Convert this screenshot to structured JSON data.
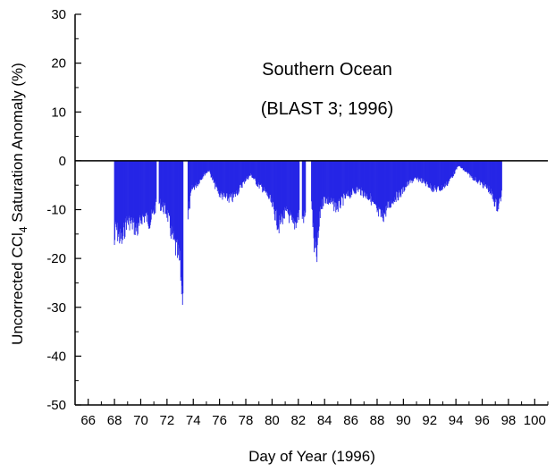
{
  "chart_data": {
    "type": "bar",
    "title": "Southern Ocean",
    "subtitle": "(BLAST 3; 1996)",
    "xlabel": "Day of Year (1996)",
    "ylabel_main": "Uncorrected CCl",
    "ylabel_sub": "4",
    "ylabel_rest": " Saturation Anomaly (%)",
    "xlim": [
      65,
      101
    ],
    "ylim": [
      -50,
      30
    ],
    "xticks": [
      66,
      68,
      70,
      72,
      74,
      76,
      78,
      80,
      82,
      84,
      86,
      88,
      90,
      92,
      94,
      96,
      98,
      100
    ],
    "yticks": [
      -50,
      -40,
      -30,
      -20,
      -10,
      0,
      10,
      20,
      30
    ],
    "grid": false,
    "bar_color": "#2626e6",
    "zero_line": 0,
    "segments": [
      {
        "start": 68.0,
        "end": 71.2,
        "profile": [
          [
            68.0,
            -18
          ],
          [
            68.1,
            -14
          ],
          [
            68.3,
            -16
          ],
          [
            68.6,
            -17
          ],
          [
            68.9,
            -13
          ],
          [
            69.2,
            -13
          ],
          [
            69.5,
            -14
          ],
          [
            69.8,
            -15
          ],
          [
            70.1,
            -12
          ],
          [
            70.4,
            -12
          ],
          [
            70.7,
            -13
          ],
          [
            71.0,
            -11
          ],
          [
            71.2,
            -9
          ]
        ]
      },
      {
        "start": 71.4,
        "end": 73.25,
        "profile": [
          [
            71.4,
            -9
          ],
          [
            71.7,
            -10
          ],
          [
            72.0,
            -11
          ],
          [
            72.3,
            -15
          ],
          [
            72.6,
            -18
          ],
          [
            72.8,
            -20
          ],
          [
            73.0,
            -22
          ],
          [
            73.15,
            -28
          ],
          [
            73.25,
            -26
          ]
        ]
      },
      {
        "start": 73.6,
        "end": 82.1,
        "profile": [
          [
            73.6,
            -12
          ],
          [
            73.9,
            -6
          ],
          [
            74.3,
            -5
          ],
          [
            74.8,
            -3
          ],
          [
            75.2,
            -2
          ],
          [
            75.6,
            -5
          ],
          [
            76.0,
            -7
          ],
          [
            76.5,
            -8
          ],
          [
            77.0,
            -8
          ],
          [
            77.5,
            -6
          ],
          [
            78.0,
            -4
          ],
          [
            78.4,
            -3
          ],
          [
            78.9,
            -5
          ],
          [
            79.3,
            -6
          ],
          [
            79.8,
            -8
          ],
          [
            80.2,
            -11
          ],
          [
            80.5,
            -14
          ],
          [
            80.8,
            -12
          ],
          [
            81.2,
            -11
          ],
          [
            81.6,
            -14
          ],
          [
            82.0,
            -12
          ],
          [
            82.1,
            -11
          ]
        ]
      },
      {
        "start": 82.3,
        "end": 82.55,
        "profile": [
          [
            82.3,
            -12
          ],
          [
            82.55,
            -12
          ]
        ]
      },
      {
        "start": 83.0,
        "end": 97.5,
        "profile": [
          [
            83.0,
            -8
          ],
          [
            83.2,
            -18
          ],
          [
            83.4,
            -21
          ],
          [
            83.7,
            -10
          ],
          [
            84.0,
            -8
          ],
          [
            84.5,
            -9
          ],
          [
            85.0,
            -10
          ],
          [
            85.5,
            -8
          ],
          [
            86.0,
            -7
          ],
          [
            86.5,
            -6
          ],
          [
            87.0,
            -7
          ],
          [
            87.5,
            -8
          ],
          [
            88.0,
            -11
          ],
          [
            88.4,
            -12
          ],
          [
            88.8,
            -10
          ],
          [
            89.3,
            -8
          ],
          [
            89.8,
            -7
          ],
          [
            90.3,
            -5
          ],
          [
            90.8,
            -4
          ],
          [
            91.3,
            -4
          ],
          [
            91.8,
            -5
          ],
          [
            92.3,
            -6
          ],
          [
            92.8,
            -6
          ],
          [
            93.3,
            -5
          ],
          [
            93.8,
            -3
          ],
          [
            94.2,
            -1
          ],
          [
            94.6,
            -2
          ],
          [
            95.0,
            -3
          ],
          [
            95.5,
            -4
          ],
          [
            96.0,
            -5
          ],
          [
            96.5,
            -6
          ],
          [
            97.0,
            -9
          ],
          [
            97.2,
            -10
          ],
          [
            97.5,
            -7
          ]
        ]
      }
    ]
  }
}
